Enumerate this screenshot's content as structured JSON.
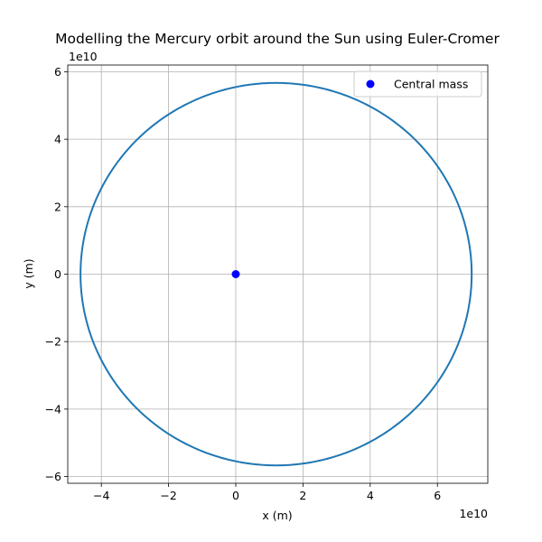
{
  "chart_data": {
    "type": "line",
    "title": "Modelling the Mercury orbit around the Sun using Euler-Cromer",
    "xlabel": "x (m)",
    "ylabel": "y (m)",
    "x_offset_text": "1e10",
    "y_offset_text": "1e10",
    "xlim": [
      -5.0,
      7.5
    ],
    "ylim": [
      -6.2,
      6.2
    ],
    "x_ticks": [
      -4,
      -2,
      0,
      2,
      4,
      6
    ],
    "y_ticks": [
      -6,
      -4,
      -2,
      0,
      2,
      4,
      6
    ],
    "x_tick_labels": [
      "−4",
      "−2",
      "0",
      "2",
      "4",
      "6"
    ],
    "y_tick_labels": [
      "−6",
      "−4",
      "−2",
      "0",
      "2",
      "4",
      "6"
    ],
    "grid": true,
    "legend_position": "top-right",
    "series": [
      {
        "kind": "orbit-line",
        "color": "#1f77b4",
        "description_values": {
          "center_x": 1.2,
          "center_y": 0.0,
          "semi_major_x": 5.82,
          "semi_minor_y": 5.67
        }
      },
      {
        "name": "Central mass",
        "kind": "scatter",
        "color": "#0000ff",
        "x": [
          0
        ],
        "y": [
          0
        ]
      }
    ]
  }
}
